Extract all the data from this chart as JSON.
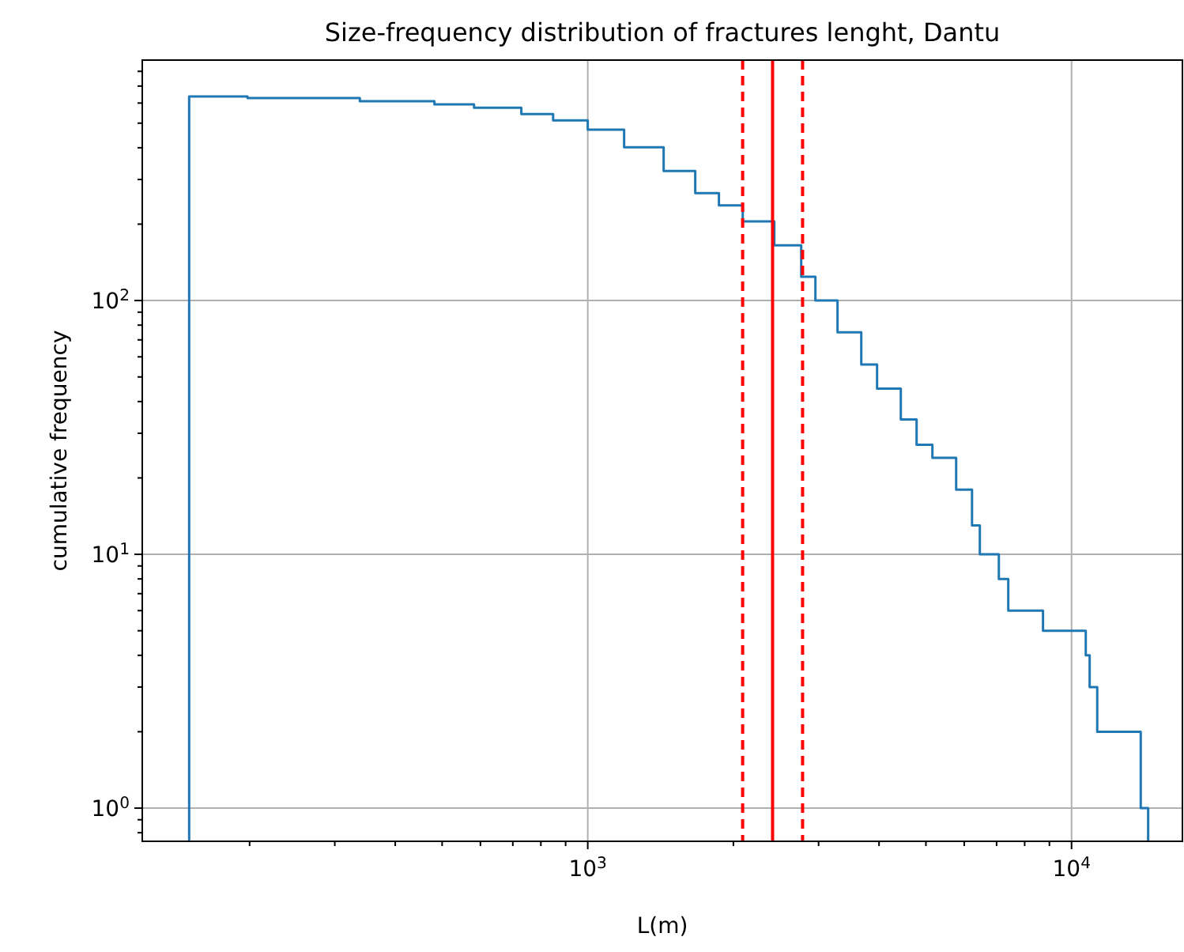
{
  "chart_data": {
    "type": "histogram",
    "title": "Size-frequency distribution of fractures lenght, Dantu",
    "xlabel": "L(m)",
    "ylabel": "cumulative frequency",
    "bins": [
      150,
      198,
      338,
      482,
      582,
      729,
      848,
      1000,
      1189,
      1435,
      1668,
      1867,
      2091,
      2430,
      2762,
      2955,
      3283,
      3676,
      3963,
      4437,
      4783,
      5157,
      5774,
      6227,
      6463,
      7075,
      7400,
      8730,
      10700,
      10900,
      11300,
      13900,
      14400
    ],
    "values": [
      637,
      628,
      610,
      593,
      575,
      543,
      513,
      471,
      402,
      324,
      265,
      237,
      205,
      165,
      124,
      100,
      75,
      56,
      45,
      34,
      27,
      24,
      18,
      13,
      10,
      8,
      6,
      5,
      4,
      3,
      2,
      1
    ],
    "color": "#1f77b4",
    "log": "xy",
    "grid": true,
    "xlim": [
      120,
      16950
    ],
    "ylim": [
      0.74,
      886
    ],
    "xticks": [
      {
        "value": 200,
        "label": null
      },
      {
        "value": 300,
        "label": null
      },
      {
        "value": 400,
        "label": null
      },
      {
        "value": 500,
        "label": null
      },
      {
        "value": 600,
        "label": null
      },
      {
        "value": 700,
        "label": null
      },
      {
        "value": 800,
        "label": null
      },
      {
        "value": 900,
        "label": null
      },
      {
        "value": 1000,
        "label": "10$^{3}$"
      },
      {
        "value": 2000,
        "label": null
      },
      {
        "value": 3000,
        "label": null
      },
      {
        "value": 4000,
        "label": null
      },
      {
        "value": 5000,
        "label": null
      },
      {
        "value": 6000,
        "label": null
      },
      {
        "value": 7000,
        "label": null
      },
      {
        "value": 8000,
        "label": null
      },
      {
        "value": 9000,
        "label": null
      },
      {
        "value": 10000,
        "label": "10$^{4}$"
      }
    ],
    "yticks": [
      {
        "value": 0.8,
        "label": null
      },
      {
        "value": 0.9,
        "label": null
      },
      {
        "value": 1,
        "label": "10$^{0}$"
      },
      {
        "value": 2,
        "label": null
      },
      {
        "value": 3,
        "label": null
      },
      {
        "value": 4,
        "label": null
      },
      {
        "value": 5,
        "label": null
      },
      {
        "value": 6,
        "label": null
      },
      {
        "value": 7,
        "label": null
      },
      {
        "value": 8,
        "label": null
      },
      {
        "value": 9,
        "label": null
      },
      {
        "value": 10,
        "label": "10$^{1}$"
      },
      {
        "value": 20,
        "label": null
      },
      {
        "value": 30,
        "label": null
      },
      {
        "value": 40,
        "label": null
      },
      {
        "value": 50,
        "label": null
      },
      {
        "value": 60,
        "label": null
      },
      {
        "value": 70,
        "label": null
      },
      {
        "value": 80,
        "label": null
      },
      {
        "value": 90,
        "label": null
      },
      {
        "value": 100,
        "label": "10$^{2}$"
      },
      {
        "value": 200,
        "label": null
      },
      {
        "value": 300,
        "label": null
      },
      {
        "value": 400,
        "label": null
      },
      {
        "value": 500,
        "label": null
      },
      {
        "value": 600,
        "label": null
      },
      {
        "value": 700,
        "label": null
      },
      {
        "value": 800,
        "label": null
      }
    ],
    "ref_lines": [
      {
        "axis": "x",
        "value": 2090,
        "color": "#ff0000",
        "line_style": "dashed"
      },
      {
        "axis": "x",
        "value": 2410,
        "color": "#ff0000",
        "line_style": "solid"
      },
      {
        "axis": "x",
        "value": 2780,
        "color": "#ff0000",
        "line_style": "dashed"
      }
    ]
  }
}
